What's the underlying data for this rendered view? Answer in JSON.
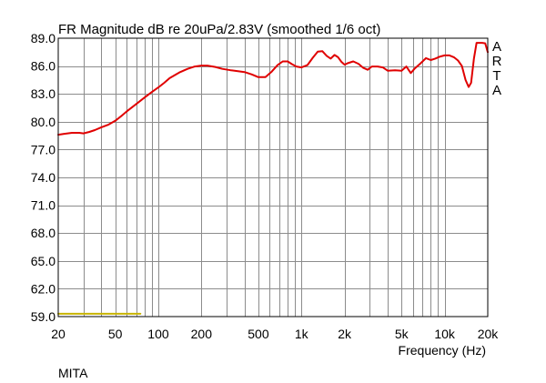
{
  "chart_data": {
    "type": "line",
    "title": "FR Magnitude dB re 20uPa/2.83V (smoothed 1/6 oct)",
    "xlabel": "Frequency (Hz)",
    "ylabel": "",
    "x_scale": "log",
    "xlim": [
      20,
      20000
    ],
    "ylim": [
      59.0,
      89.0
    ],
    "grid": true,
    "y_ticks": [
      "89.0",
      "86.0",
      "83.0",
      "80.0",
      "77.0",
      "74.0",
      "71.0",
      "68.0",
      "65.0",
      "62.0",
      "59.0"
    ],
    "x_ticks": [
      {
        "value": 20,
        "label": "20"
      },
      {
        "value": 50,
        "label": "50"
      },
      {
        "value": 100,
        "label": "100"
      },
      {
        "value": 200,
        "label": "200"
      },
      {
        "value": 500,
        "label": "500"
      },
      {
        "value": 1000,
        "label": "1k"
      },
      {
        "value": 2000,
        "label": "2k"
      },
      {
        "value": 5000,
        "label": "5k"
      },
      {
        "value": 10000,
        "label": "10k"
      },
      {
        "value": 20000,
        "label": "20k"
      }
    ],
    "series": [
      {
        "color": "#e00000",
        "points": [
          [
            20,
            78.6
          ],
          [
            22,
            78.7
          ],
          [
            25,
            78.8
          ],
          [
            28,
            78.8
          ],
          [
            30,
            78.75
          ],
          [
            33,
            78.9
          ],
          [
            36,
            79.1
          ],
          [
            40,
            79.4
          ],
          [
            45,
            79.7
          ],
          [
            50,
            80.1
          ],
          [
            55,
            80.6
          ],
          [
            60,
            81.1
          ],
          [
            70,
            81.9
          ],
          [
            80,
            82.6
          ],
          [
            90,
            83.2
          ],
          [
            100,
            83.7
          ],
          [
            110,
            84.2
          ],
          [
            120,
            84.7
          ],
          [
            140,
            85.3
          ],
          [
            160,
            85.7
          ],
          [
            180,
            85.95
          ],
          [
            200,
            86.05
          ],
          [
            220,
            86.05
          ],
          [
            250,
            85.9
          ],
          [
            280,
            85.7
          ],
          [
            320,
            85.55
          ],
          [
            360,
            85.45
          ],
          [
            400,
            85.35
          ],
          [
            450,
            85.1
          ],
          [
            500,
            84.8
          ],
          [
            560,
            84.8
          ],
          [
            620,
            85.4
          ],
          [
            680,
            86.1
          ],
          [
            740,
            86.5
          ],
          [
            800,
            86.5
          ],
          [
            860,
            86.2
          ],
          [
            920,
            85.95
          ],
          [
            1000,
            85.85
          ],
          [
            1100,
            86.1
          ],
          [
            1200,
            86.9
          ],
          [
            1300,
            87.55
          ],
          [
            1400,
            87.6
          ],
          [
            1500,
            87.1
          ],
          [
            1600,
            86.8
          ],
          [
            1700,
            87.2
          ],
          [
            1800,
            86.95
          ],
          [
            1900,
            86.45
          ],
          [
            2000,
            86.15
          ],
          [
            2100,
            86.3
          ],
          [
            2300,
            86.5
          ],
          [
            2500,
            86.25
          ],
          [
            2700,
            85.8
          ],
          [
            2900,
            85.6
          ],
          [
            3100,
            85.95
          ],
          [
            3400,
            85.95
          ],
          [
            3700,
            85.85
          ],
          [
            4000,
            85.5
          ],
          [
            4500,
            85.55
          ],
          [
            5000,
            85.5
          ],
          [
            5400,
            85.95
          ],
          [
            5800,
            85.25
          ],
          [
            6200,
            85.75
          ],
          [
            6800,
            86.3
          ],
          [
            7400,
            86.85
          ],
          [
            8000,
            86.65
          ],
          [
            8600,
            86.8
          ],
          [
            9200,
            87.0
          ],
          [
            10000,
            87.15
          ],
          [
            10800,
            87.15
          ],
          [
            11600,
            86.95
          ],
          [
            12400,
            86.6
          ],
          [
            13200,
            86.0
          ],
          [
            14000,
            84.5
          ],
          [
            14700,
            83.75
          ],
          [
            15300,
            84.2
          ],
          [
            16000,
            86.8
          ],
          [
            16700,
            88.5
          ],
          [
            17500,
            88.5
          ],
          [
            18300,
            88.5
          ],
          [
            19200,
            88.45
          ],
          [
            20000,
            87.5
          ]
        ]
      },
      {
        "color": "#c8b400",
        "points": [
          [
            20,
            59.3
          ],
          [
            75,
            59.3
          ]
        ]
      }
    ],
    "artal_letters": [
      "A",
      "R",
      "T",
      "A"
    ],
    "footer": "MITA"
  }
}
